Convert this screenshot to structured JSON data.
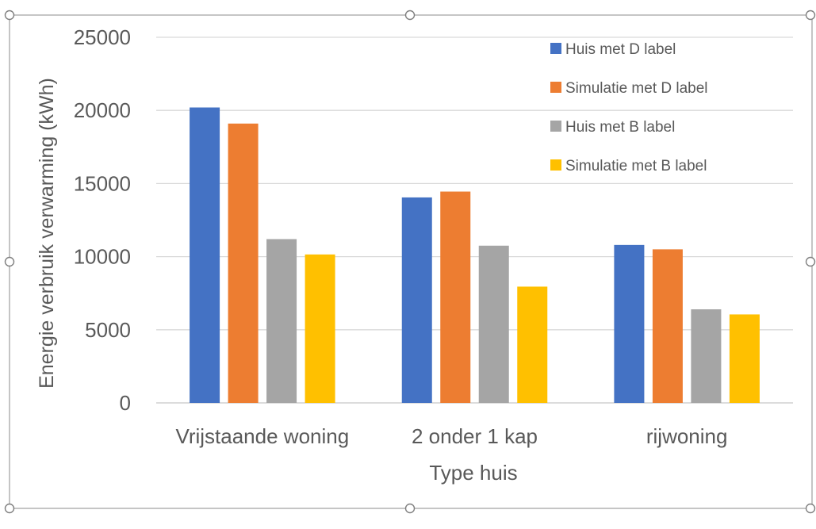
{
  "chart_data": {
    "type": "bar",
    "categories": [
      "Vrijstaande woning",
      "2 onder 1 kap",
      "rijwoning"
    ],
    "series": [
      {
        "name": "Huis met D label",
        "values": [
          20200,
          14050,
          10800
        ],
        "color": "#4472C4"
      },
      {
        "name": "Simulatie met D label",
        "values": [
          19100,
          14450,
          10500
        ],
        "color": "#ED7D31"
      },
      {
        "name": "Huis met B label",
        "values": [
          11200,
          10750,
          6400
        ],
        "color": "#A5A5A5"
      },
      {
        "name": "Simulatie met B label",
        "values": [
          10150,
          7950,
          6050
        ],
        "color": "#FFC000"
      }
    ],
    "xlabel": "Type huis",
    "ylabel": "Energie verbruik verwarming  (kWh)",
    "ylim": [
      0,
      25000
    ],
    "yticks": [
      0,
      5000,
      10000,
      15000,
      20000,
      25000
    ],
    "ytick_labels": [
      "0",
      "5000",
      "10000",
      "15000",
      "20000",
      "25000"
    ],
    "grid": true,
    "legend_position": "top-right"
  }
}
